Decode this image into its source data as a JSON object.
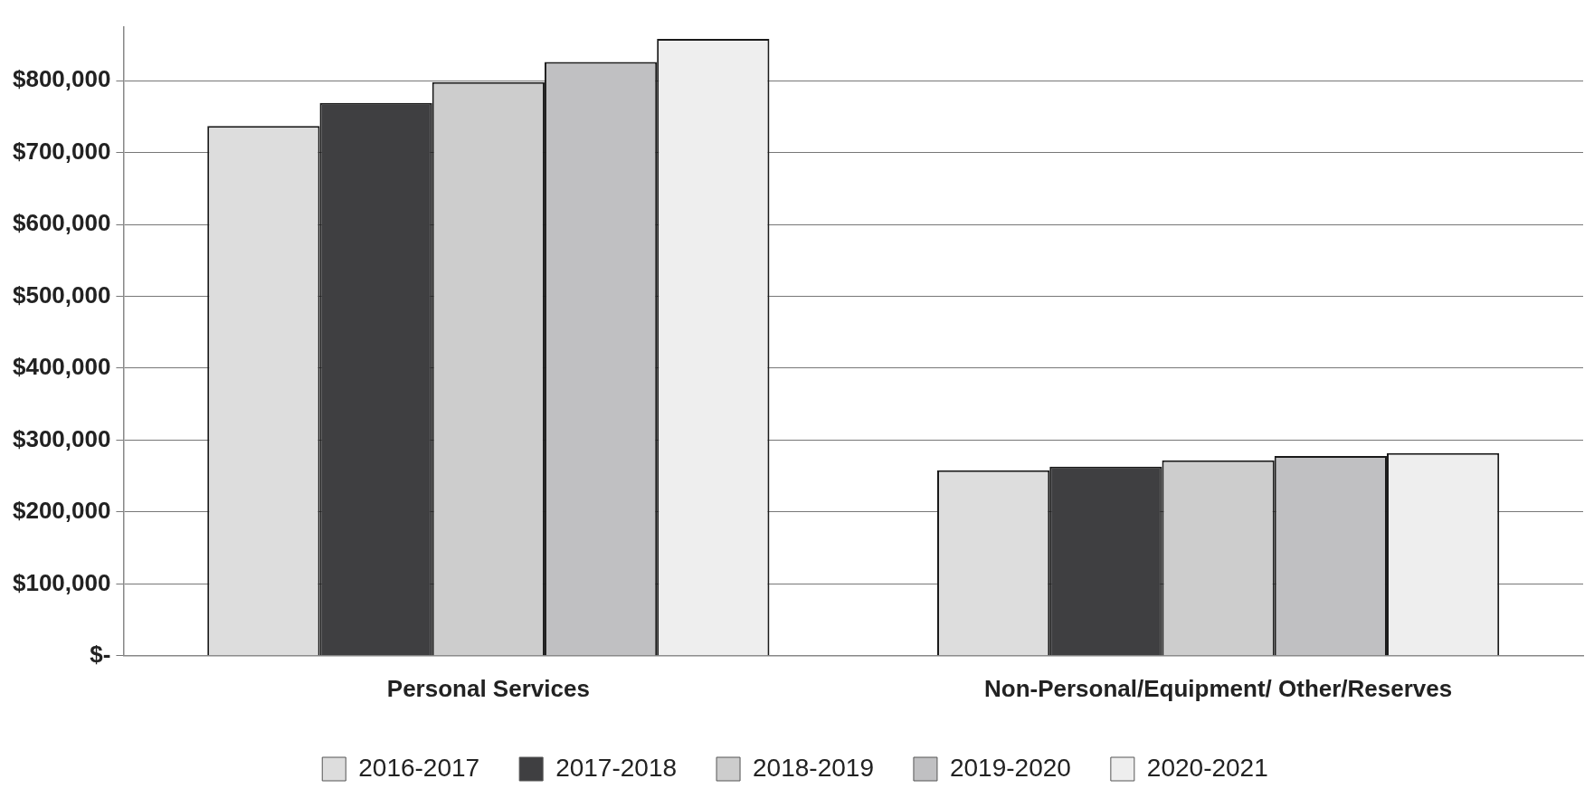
{
  "chart_data": {
    "type": "bar",
    "categories": [
      "Personal Services",
      "Non-Personal/Equipment/ Other/Reserves"
    ],
    "series": [
      {
        "name": "2016-2017",
        "color": "#dddddd",
        "values": [
          737000,
          258000
        ]
      },
      {
        "name": "2017-2018",
        "color": "#3f3f41",
        "values": [
          769000,
          263000
        ]
      },
      {
        "name": "2018-2019",
        "color": "#cdcdcd",
        "values": [
          798000,
          272000
        ]
      },
      {
        "name": "2019-2020",
        "color": "#c0c0c2",
        "values": [
          826000,
          278000
        ]
      },
      {
        "name": "2020-2021",
        "color": "#eeeeee",
        "values": [
          858000,
          282000
        ]
      }
    ],
    "ylim": [
      0,
      875000
    ],
    "yticks": [
      {
        "value": 0,
        "label": "$-"
      },
      {
        "value": 100000,
        "label": "$100,000"
      },
      {
        "value": 200000,
        "label": "$200,000"
      },
      {
        "value": 300000,
        "label": "$300,000"
      },
      {
        "value": 400000,
        "label": "$400,000"
      },
      {
        "value": 500000,
        "label": "$500,000"
      },
      {
        "value": 600000,
        "label": "$600,000"
      },
      {
        "value": 700000,
        "label": "$700,000"
      },
      {
        "value": 800000,
        "label": "$800,000"
      }
    ],
    "grid": "y",
    "legend": "bottom"
  }
}
